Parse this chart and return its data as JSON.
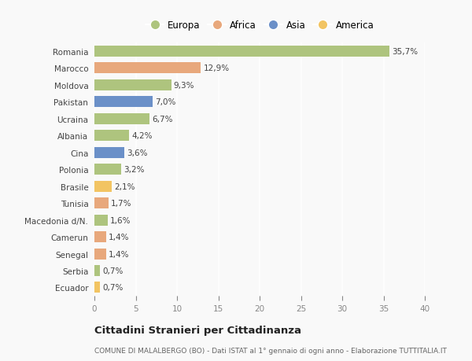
{
  "countries": [
    "Romania",
    "Marocco",
    "Moldova",
    "Pakistan",
    "Ucraina",
    "Albania",
    "Cina",
    "Polonia",
    "Brasile",
    "Tunisia",
    "Macedonia d/N.",
    "Camerun",
    "Senegal",
    "Serbia",
    "Ecuador"
  ],
  "values": [
    35.7,
    12.9,
    9.3,
    7.0,
    6.7,
    4.2,
    3.6,
    3.2,
    2.1,
    1.7,
    1.6,
    1.4,
    1.4,
    0.7,
    0.7
  ],
  "labels": [
    "35,7%",
    "12,9%",
    "9,3%",
    "7,0%",
    "6,7%",
    "4,2%",
    "3,6%",
    "3,2%",
    "2,1%",
    "1,7%",
    "1,6%",
    "1,4%",
    "1,4%",
    "0,7%",
    "0,7%"
  ],
  "continents": [
    "Europa",
    "Africa",
    "Europa",
    "Asia",
    "Europa",
    "Europa",
    "Asia",
    "Europa",
    "America",
    "Africa",
    "Europa",
    "Africa",
    "Africa",
    "Europa",
    "America"
  ],
  "continent_colors": {
    "Europa": "#aec47e",
    "Africa": "#e8a87c",
    "Asia": "#6b90c8",
    "America": "#f2c462"
  },
  "legend_order": [
    "Europa",
    "Africa",
    "Asia",
    "America"
  ],
  "title": "Cittadini Stranieri per Cittadinanza",
  "subtitle": "COMUNE DI MALALBERGO (BO) - Dati ISTAT al 1° gennaio di ogni anno - Elaborazione TUTTITALIA.IT",
  "xlim": [
    0,
    40
  ],
  "xticks": [
    0,
    5,
    10,
    15,
    20,
    25,
    30,
    35,
    40
  ],
  "background_color": "#f9f9f9",
  "grid_color": "#ffffff",
  "bar_height": 0.65,
  "label_fontsize": 7.5,
  "ytick_fontsize": 7.5,
  "xtick_fontsize": 7.5,
  "legend_fontsize": 8.5,
  "title_fontsize": 9.5,
  "subtitle_fontsize": 6.5
}
